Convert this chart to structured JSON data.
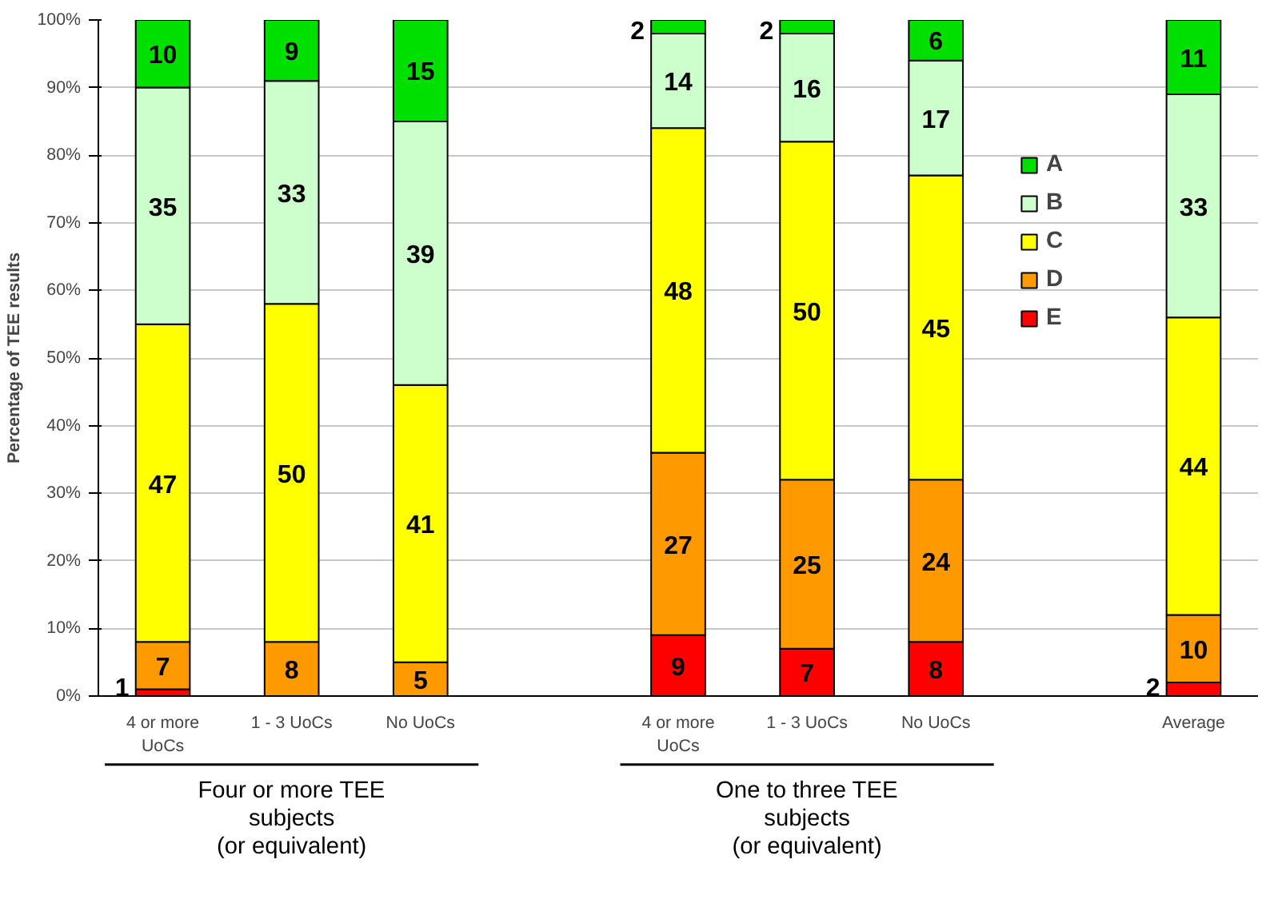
{
  "chart_data": {
    "type": "bar",
    "stacked": true,
    "ylabel": "Percentage of TEE results",
    "categories": [
      "4 or more\nUoCs",
      "1 - 3 UoCs",
      "No UoCs",
      null,
      "4 or more\nUoCs",
      "1 - 3 UoCs",
      "No UoCs",
      null,
      "Average"
    ],
    "series": [
      {
        "name": "E",
        "color": "#ff0000",
        "values": [
          1,
          null,
          null,
          null,
          9,
          7,
          8,
          null,
          2
        ]
      },
      {
        "name": "D",
        "color": "#ff9900",
        "values": [
          7,
          8,
          5,
          null,
          27,
          25,
          24,
          null,
          10
        ]
      },
      {
        "name": "C",
        "color": "#ffff00",
        "values": [
          47,
          50,
          41,
          null,
          48,
          50,
          45,
          null,
          44
        ]
      },
      {
        "name": "B",
        "color": "#ccffcc",
        "values": [
          35,
          33,
          39,
          null,
          14,
          16,
          17,
          null,
          33
        ]
      },
      {
        "name": "A",
        "color": "#00e000",
        "values": [
          10,
          9,
          15,
          null,
          2,
          2,
          6,
          null,
          11
        ]
      }
    ],
    "data_labels": true,
    "grid": "y",
    "legend": "top right",
    "ylim": [
      0,
      100
    ],
    "yticks": [
      {
        "value": 0,
        "label": "0%"
      },
      {
        "value": 10,
        "label": "10%"
      },
      {
        "value": 20,
        "label": "20%"
      },
      {
        "value": 30,
        "label": "30%"
      },
      {
        "value": 40,
        "label": "40%"
      },
      {
        "value": 50,
        "label": "50%"
      },
      {
        "value": 60,
        "label": "60%"
      },
      {
        "value": 70,
        "label": "70%"
      },
      {
        "value": 80,
        "label": "80%"
      },
      {
        "value": 90,
        "label": "90%"
      },
      {
        "value": 100,
        "label": "100%"
      }
    ],
    "annotations": [
      "Four or more TEE\nsubjects\n(or equivalent)",
      "One to three TEE\nsubjects\n(or equivalent)"
    ]
  }
}
